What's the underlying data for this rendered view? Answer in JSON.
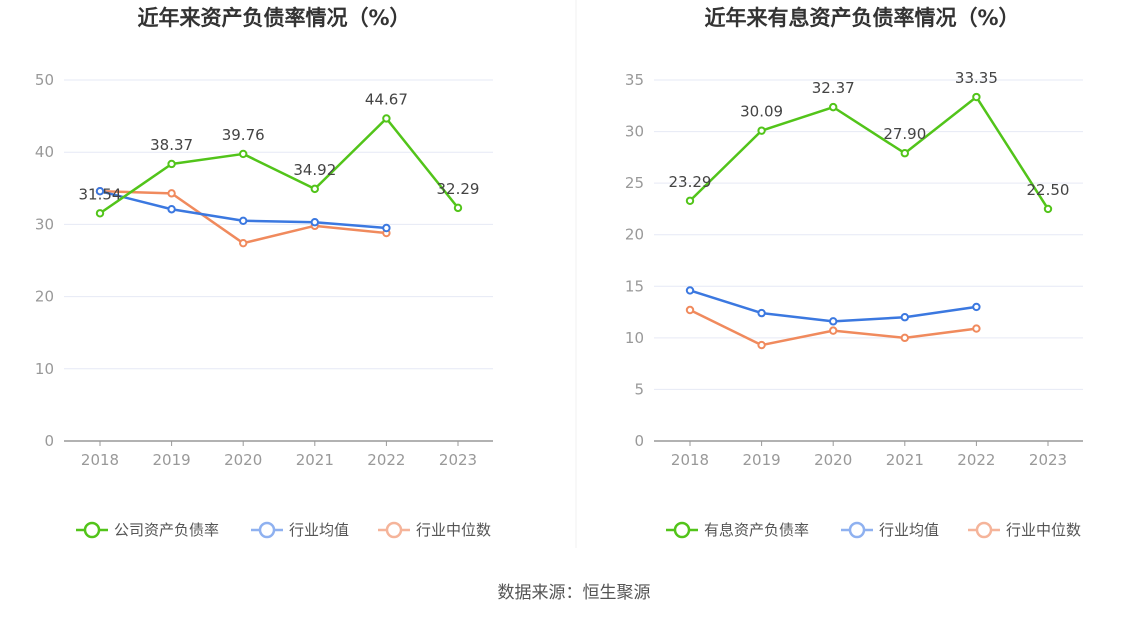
{
  "source_text": "数据来源：恒生聚源",
  "chart_data": [
    {
      "type": "line",
      "title": "近年来资产负债率情况（%）",
      "categories": [
        "2018",
        "2019",
        "2020",
        "2021",
        "2022",
        "2023"
      ],
      "ylim": [
        0,
        50
      ],
      "yticks": [
        0,
        10,
        20,
        30,
        40,
        50
      ],
      "grid": true,
      "legend_position": "bottom",
      "series": [
        {
          "name": "公司资产负债率",
          "color": "#52c41a",
          "values": [
            31.54,
            38.37,
            39.76,
            34.92,
            44.67,
            32.29
          ],
          "labels": [
            "31.54",
            "38.37",
            "39.76",
            "34.92",
            "44.67",
            "32.29"
          ]
        },
        {
          "name": "行业均值",
          "color": "#3b78e0",
          "values": [
            34.6,
            32.1,
            30.5,
            30.3,
            29.5,
            null
          ]
        },
        {
          "name": "行业中位数",
          "color": "#f08a5d",
          "values": [
            34.6,
            34.3,
            27.4,
            29.8,
            28.8,
            null
          ]
        }
      ]
    },
    {
      "type": "line",
      "title": "近年来有息资产负债率情况（%）",
      "categories": [
        "2018",
        "2019",
        "2020",
        "2021",
        "2022",
        "2023"
      ],
      "ylim": [
        0,
        35
      ],
      "yticks": [
        0,
        5,
        10,
        15,
        20,
        25,
        30,
        35
      ],
      "grid": true,
      "legend_position": "bottom",
      "series": [
        {
          "name": "有息资产负债率",
          "color": "#52c41a",
          "values": [
            23.29,
            30.09,
            32.37,
            27.9,
            33.35,
            22.5
          ],
          "labels": [
            "23.29",
            "30.09",
            "32.37",
            "27.90",
            "33.35",
            "22.50"
          ]
        },
        {
          "name": "行业均值",
          "color": "#3b78e0",
          "values": [
            14.6,
            12.4,
            11.6,
            12.0,
            13.0,
            null
          ]
        },
        {
          "name": "行业中位数",
          "color": "#f08a5d",
          "values": [
            12.7,
            9.3,
            10.7,
            10.0,
            10.9,
            null
          ]
        }
      ]
    }
  ]
}
